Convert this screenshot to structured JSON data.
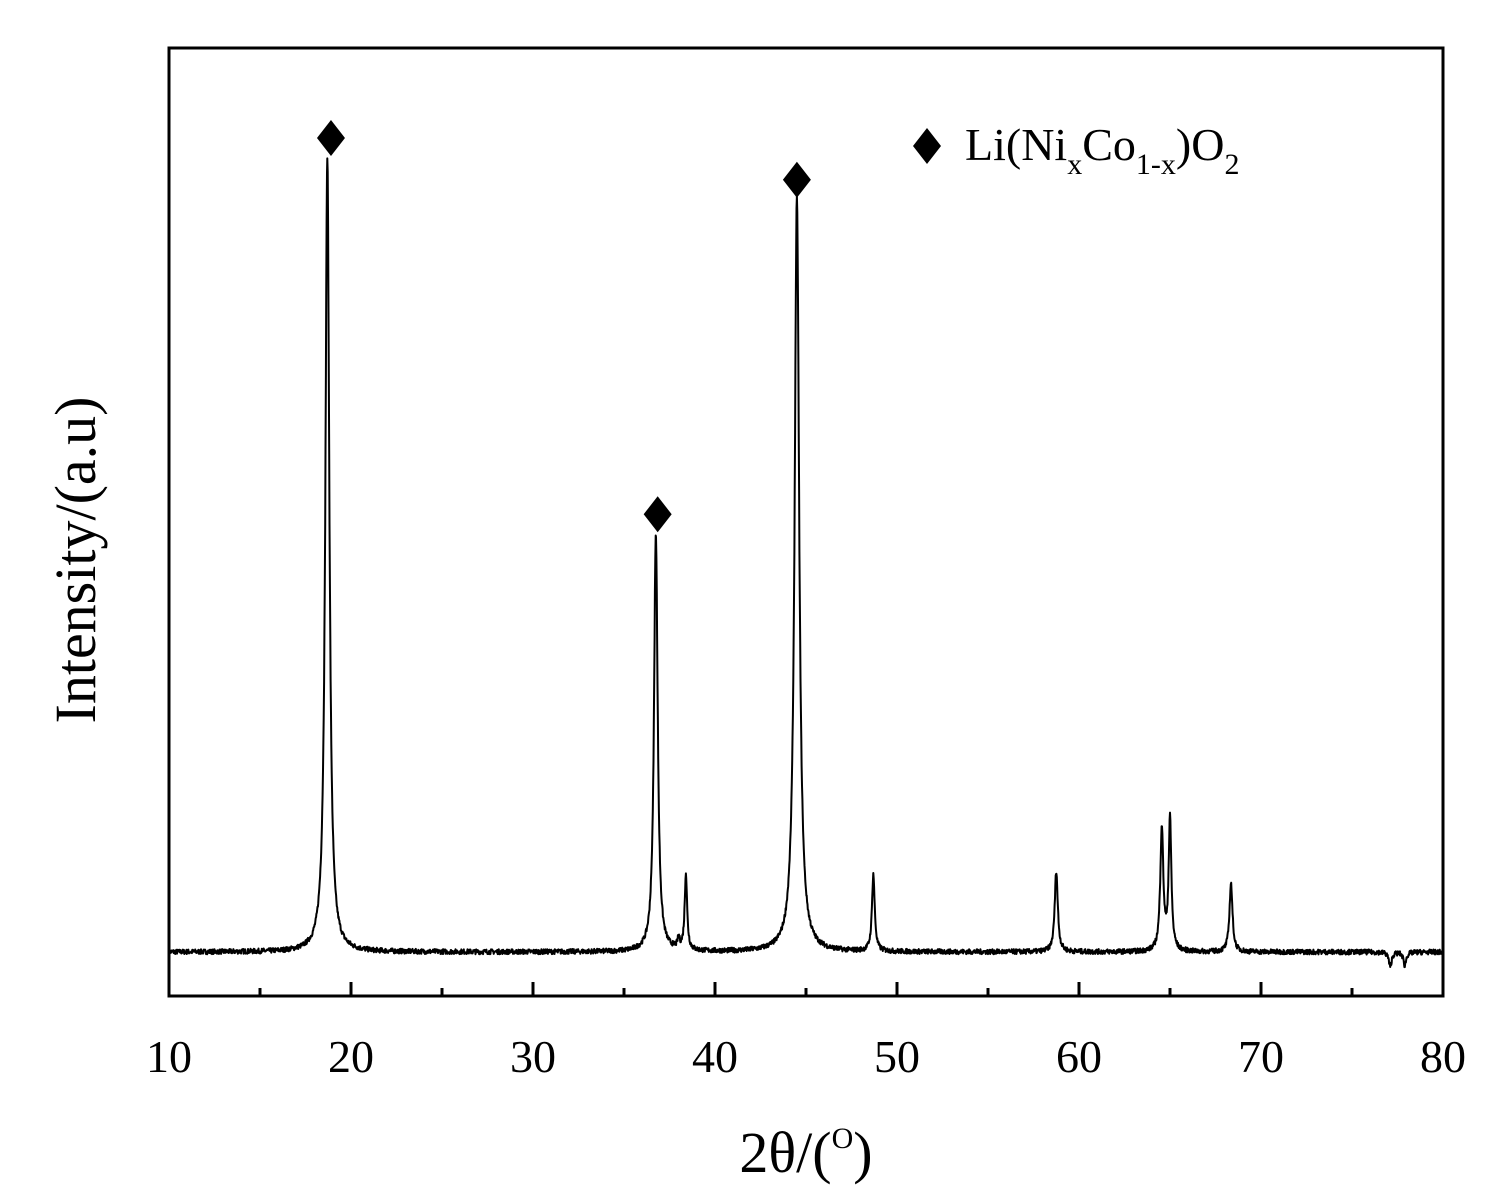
{
  "chart_data": {
    "type": "line",
    "title": "",
    "xlabel": {
      "prefix": "2θ/(",
      "sup": "O",
      "suffix": ")"
    },
    "ylabel": "Intensity/(a.u)",
    "xlim": [
      10,
      80
    ],
    "ylim": [
      0,
      1000
    ],
    "x_ticks": [
      "10",
      "20",
      "30",
      "40",
      "50",
      "60",
      "70",
      "80"
    ],
    "x_minor_ticks": [
      15,
      25,
      35,
      45,
      55,
      65,
      75
    ],
    "y_ticks": [],
    "grid": false,
    "legend": {
      "placement": "top-right",
      "marker": "diamond",
      "parts": [
        {
          "t": "Li(Ni",
          "sub": false
        },
        {
          "t": "x",
          "sub": true
        },
        {
          "t": "Co",
          "sub": false
        },
        {
          "t": "1-x",
          "sub": true
        },
        {
          "t": ")O",
          "sub": false
        },
        {
          "t": "2",
          "sub": true
        }
      ]
    },
    "series": [
      {
        "name": "Li(NixCo1-x)O2",
        "color": "#000000",
        "baseline": 48,
        "noise": 3,
        "peaks": [
          {
            "x": 18.7,
            "height": 1000,
            "width": 0.13
          },
          {
            "x": 36.75,
            "height": 550,
            "width": 0.12
          },
          {
            "x": 38.0,
            "height": 60,
            "width": 0.07
          },
          {
            "x": 38.4,
            "height": 140,
            "width": 0.08
          },
          {
            "x": 44.5,
            "height": 950,
            "width": 0.15
          },
          {
            "x": 48.7,
            "height": 140,
            "width": 0.09
          },
          {
            "x": 58.75,
            "height": 145,
            "width": 0.1
          },
          {
            "x": 64.55,
            "height": 195,
            "width": 0.1
          },
          {
            "x": 65.0,
            "height": 205,
            "width": 0.09
          },
          {
            "x": 68.35,
            "height": 130,
            "width": 0.1
          },
          {
            "x": 77.1,
            "height": 30,
            "width": 0.09
          },
          {
            "x": 77.9,
            "height": 32,
            "width": 0.09
          }
        ]
      }
    ],
    "markers": [
      {
        "x": 18.9,
        "label_for": "Li(NixCo1-x)O2"
      },
      {
        "x": 36.85,
        "label_for": "Li(NixCo1-x)O2"
      },
      {
        "x": 44.5,
        "label_for": "Li(NixCo1-x)O2"
      }
    ]
  }
}
